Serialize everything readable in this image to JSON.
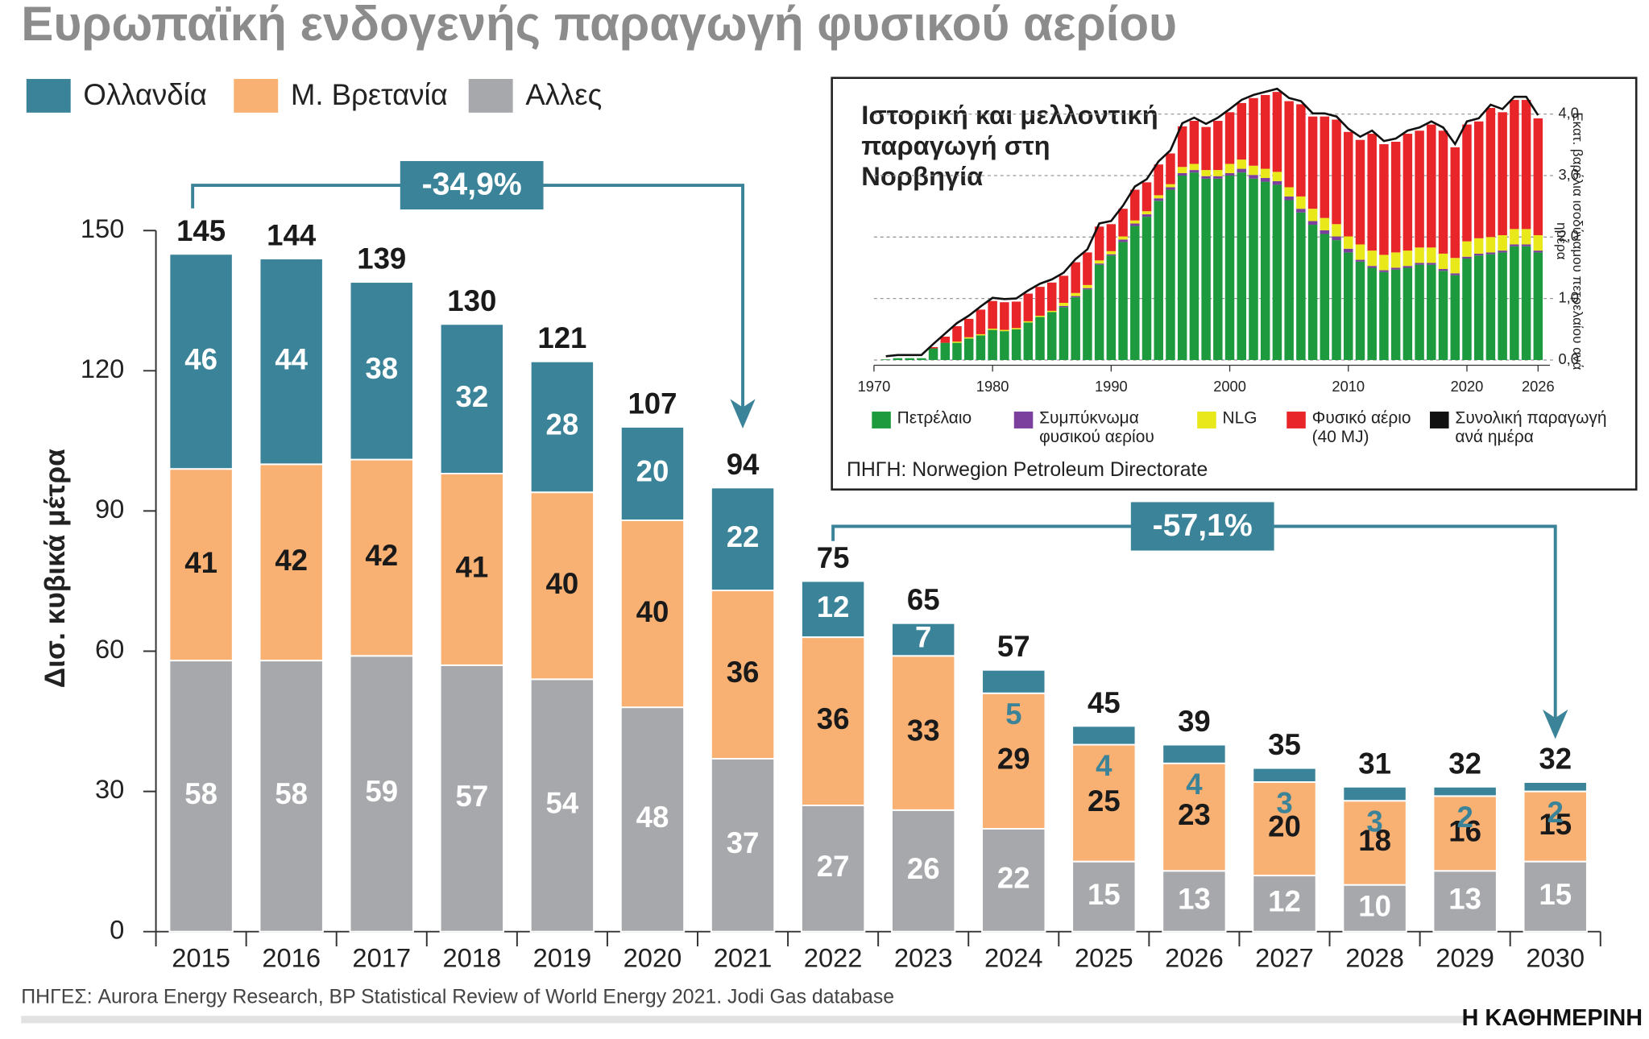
{
  "chart_data": [
    {
      "type": "bar",
      "stacked": true,
      "show_values": true,
      "title": "Ευρωπαϊκή ενδογενής παραγωγή φυσικού αερίου",
      "y_label": "Δισ. κυβικά μέτρα",
      "categories": [
        "2015",
        "2016",
        "2017",
        "2018",
        "2019",
        "2020",
        "2021",
        "2022",
        "2023",
        "2024",
        "2025",
        "2026",
        "2027",
        "2028",
        "2029",
        "2030"
      ],
      "series": [
        {
          "name": "Ολλανδία",
          "color": "#3a8398",
          "values": [
            46,
            44,
            38,
            32,
            28,
            20,
            22,
            12,
            7,
            5,
            4,
            4,
            3,
            3,
            2,
            2
          ]
        },
        {
          "name": "Μ. Βρετανία",
          "color": "#f8b073",
          "values": [
            41,
            42,
            42,
            41,
            40,
            40,
            36,
            36,
            33,
            29,
            25,
            23,
            20,
            18,
            16,
            15
          ]
        },
        {
          "name": "Αλλες",
          "color": "#a7a8ab",
          "values": [
            58,
            58,
            59,
            57,
            54,
            48,
            37,
            27,
            26,
            22,
            15,
            13,
            12,
            10,
            13,
            15
          ]
        }
      ],
      "totals": [
        145,
        144,
        139,
        130,
        121,
        107,
        94,
        75,
        65,
        57,
        45,
        39,
        35,
        31,
        32,
        32
      ],
      "annotations": [
        "-34,9%",
        "-57,1%"
      ],
      "ylim": [
        0,
        150
      ],
      "yticks": [
        0,
        30,
        60,
        90,
        120,
        150
      ],
      "source": "ΠΗΓΕΣ: Aurora Energy Research, BP Statistical Review of World Energy 2021. Jodi Gas database"
    },
    {
      "type": "bar",
      "stacked": true,
      "title": "Ιστορική και μελλοντική παραγωγή στη Νορβηγία",
      "y2_label": "Εκατ. βαρέλια ισοδύναμου πετρελαίου ανά ημέρα",
      "x": [
        1971,
        1972,
        1973,
        1974,
        1975,
        1976,
        1977,
        1978,
        1979,
        1980,
        1981,
        1982,
        1983,
        1984,
        1985,
        1986,
        1987,
        1988,
        1989,
        1990,
        1991,
        1992,
        1993,
        1994,
        1995,
        1996,
        1997,
        1998,
        1999,
        2000,
        2001,
        2002,
        2003,
        2004,
        2005,
        2006,
        2007,
        2008,
        2009,
        2010,
        2011,
        2012,
        2013,
        2014,
        2015,
        2016,
        2017,
        2018,
        2019,
        2020,
        2021,
        2022,
        2023,
        2024,
        2025,
        2026
      ],
      "series": [
        {
          "name": "Πετρέλαιο",
          "color": "#1e9a3e",
          "axis": "y2",
          "values": [
            0.01,
            0.03,
            0.03,
            0.03,
            0.19,
            0.28,
            0.28,
            0.35,
            0.4,
            0.49,
            0.47,
            0.5,
            0.61,
            0.7,
            0.78,
            0.86,
            1.02,
            1.15,
            1.55,
            1.7,
            1.92,
            2.18,
            2.33,
            2.59,
            2.77,
            3.0,
            3.05,
            2.95,
            2.95,
            3.0,
            3.05,
            2.95,
            2.9,
            2.85,
            2.6,
            2.4,
            2.2,
            2.05,
            1.95,
            1.75,
            1.6,
            1.5,
            1.43,
            1.47,
            1.5,
            1.55,
            1.55,
            1.45,
            1.38,
            1.65,
            1.7,
            1.72,
            1.75,
            1.85,
            1.85,
            1.75
          ]
        },
        {
          "name": "Συμπύκνωμα φυσικού αερίου",
          "color": "#7b3f9e",
          "axis": "y2",
          "values": [
            0,
            0,
            0,
            0,
            0,
            0,
            0,
            0,
            0,
            0,
            0,
            0,
            0,
            0,
            0,
            0.02,
            0.02,
            0.02,
            0.02,
            0.02,
            0.04,
            0.04,
            0.04,
            0.04,
            0.04,
            0.04,
            0.04,
            0.04,
            0.04,
            0.04,
            0.06,
            0.06,
            0.06,
            0.06,
            0.06,
            0.06,
            0.06,
            0.06,
            0.06,
            0.06,
            0.03,
            0.03,
            0.03,
            0.03,
            0.03,
            0.03,
            0.03,
            0.03,
            0.03,
            0.03,
            0.03,
            0.03,
            0.03,
            0.03,
            0.03,
            0.03
          ]
        },
        {
          "name": "NLG",
          "color": "#e8e81a",
          "axis": "y2",
          "values": [
            0,
            0,
            0,
            0,
            0,
            0,
            0.02,
            0.02,
            0.02,
            0.02,
            0.02,
            0.02,
            0.02,
            0.02,
            0.02,
            0.05,
            0.05,
            0.05,
            0.05,
            0.05,
            0.05,
            0.05,
            0.05,
            0.05,
            0.05,
            0.1,
            0.1,
            0.1,
            0.1,
            0.15,
            0.15,
            0.15,
            0.15,
            0.15,
            0.15,
            0.2,
            0.2,
            0.2,
            0.2,
            0.2,
            0.25,
            0.25,
            0.25,
            0.25,
            0.25,
            0.25,
            0.25,
            0.25,
            0.25,
            0.25,
            0.25,
            0.25,
            0.25,
            0.25,
            0.25,
            0.25
          ]
        },
        {
          "name": "Φυσικό αέριο (40 MJ)",
          "color": "#e8262a",
          "axis": "y2",
          "values": [
            0,
            0,
            0,
            0,
            0.02,
            0.1,
            0.25,
            0.3,
            0.4,
            0.45,
            0.45,
            0.43,
            0.45,
            0.47,
            0.46,
            0.44,
            0.5,
            0.53,
            0.55,
            0.44,
            0.45,
            0.5,
            0.47,
            0.5,
            0.5,
            0.66,
            0.7,
            0.7,
            0.8,
            0.84,
            0.92,
            1.1,
            1.2,
            1.3,
            1.4,
            1.5,
            1.5,
            1.65,
            1.7,
            1.7,
            1.7,
            1.9,
            1.8,
            1.8,
            1.9,
            1.9,
            2.0,
            2.0,
            1.8,
            1.9,
            1.9,
            2.1,
            2.0,
            2.1,
            2.1,
            1.9
          ]
        },
        {
          "name": "Συνολική παραγωγή ανά ημέρα",
          "color": "#111111",
          "axis": "y2",
          "type": "line",
          "values": [
            0.01,
            0.03,
            0.03,
            0.03,
            0.21,
            0.38,
            0.55,
            0.67,
            0.82,
            0.96,
            0.94,
            0.95,
            1.08,
            1.19,
            1.26,
            1.37,
            1.59,
            1.75,
            2.17,
            2.21,
            2.46,
            2.77,
            2.89,
            3.18,
            3.36,
            3.8,
            3.89,
            3.79,
            3.89,
            4.03,
            4.18,
            4.26,
            4.31,
            4.36,
            4.21,
            4.16,
            3.96,
            3.96,
            3.91,
            3.71,
            3.58,
            3.68,
            3.51,
            3.55,
            3.68,
            3.73,
            3.83,
            3.73,
            3.46,
            3.83,
            3.88,
            4.1,
            4.03,
            4.23,
            4.23,
            3.93
          ]
        }
      ],
      "xlim": [
        1970,
        2027
      ],
      "xticks": [
        1970,
        1980,
        1990,
        2000,
        2010,
        2020,
        2026
      ],
      "y2lim": [
        0,
        4.4
      ],
      "y2ticks": [
        {
          "value": 0,
          "label": "0,0"
        },
        {
          "value": 1,
          "label": "1,0"
        },
        {
          "value": 2,
          "label": "2,0"
        },
        {
          "value": 3,
          "label": "3,0"
        },
        {
          "value": 4,
          "label": "4,0"
        }
      ],
      "grid": true,
      "source": "ΠΗΓΗ: Norwegion Petroleum Directorate"
    }
  ],
  "publisher": "Η ΚΑΘΗΜΕΡΙΝΗ"
}
